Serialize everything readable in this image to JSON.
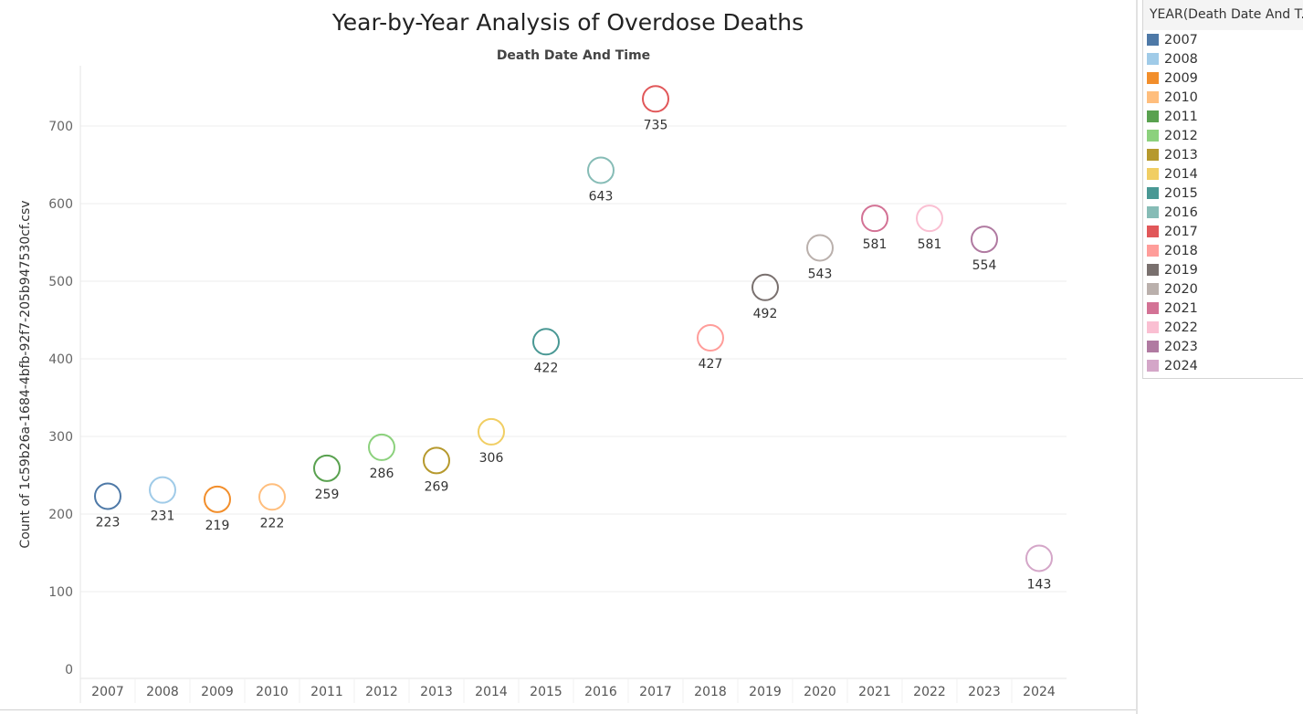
{
  "chart_data": {
    "type": "scatter",
    "title": "Year-by-Year Analysis of Overdose Deaths",
    "subtitle": "Death Date And Time",
    "ylabel": "Count of 1c59b26a-1684-4bfb-92f7-205b947530cf.csv",
    "xlabel": "",
    "ylim": [
      0,
      770
    ],
    "yticks": [
      0,
      100,
      200,
      300,
      400,
      500,
      600,
      700
    ],
    "grid": true,
    "marker": "hollow-circle",
    "categories": [
      "2007",
      "2008",
      "2009",
      "2010",
      "2011",
      "2012",
      "2013",
      "2014",
      "2015",
      "2016",
      "2017",
      "2018",
      "2019",
      "2020",
      "2021",
      "2022",
      "2023",
      "2024"
    ],
    "values": [
      223,
      231,
      219,
      222,
      259,
      286,
      269,
      306,
      422,
      643,
      735,
      427,
      492,
      543,
      581,
      581,
      554,
      143
    ],
    "colors": [
      "#4e79a7",
      "#a0cbe8",
      "#f28e2b",
      "#ffbe7d",
      "#59a14f",
      "#8cd17d",
      "#b6992d",
      "#f1ce63",
      "#499894",
      "#86bcb6",
      "#e15759",
      "#ff9d9a",
      "#79706e",
      "#bab0ac",
      "#d37295",
      "#fabfd2",
      "#b07aa1",
      "#d4a6c8"
    ],
    "legend": {
      "title": "YEAR(Death Date And T..",
      "position": "right"
    }
  }
}
